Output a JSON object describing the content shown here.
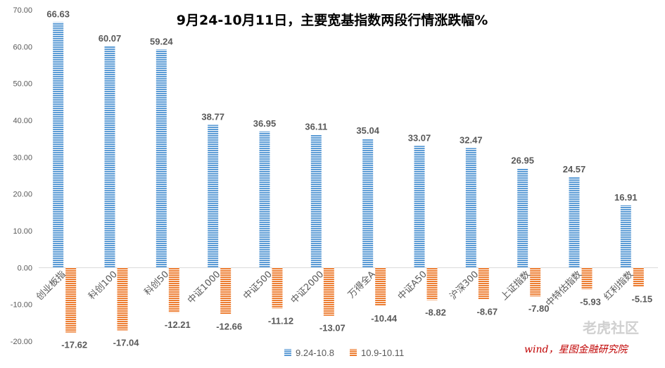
{
  "chart_data": {
    "type": "bar",
    "title": "9月24-10月11日，主要宽基指数两段行情涨跌幅%",
    "categories": [
      "创业板指",
      "科创100",
      "科创50",
      "中证1000",
      "中证500",
      "中证2000",
      "万得全A",
      "中证A50",
      "沪深300",
      "上证指数",
      "中特估指数",
      "红利指数"
    ],
    "series": [
      {
        "name": "9.24-10.8",
        "color": "#5b9bd5",
        "values": [
          66.63,
          60.07,
          59.24,
          38.77,
          36.95,
          36.11,
          35.04,
          33.07,
          32.47,
          26.95,
          24.57,
          16.91
        ]
      },
      {
        "name": "10.9-10.11",
        "color": "#ed7d31",
        "values": [
          -17.62,
          -17.04,
          -12.21,
          -12.66,
          -11.12,
          -13.07,
          -10.44,
          -8.82,
          -8.67,
          -7.8,
          -5.93,
          -5.15
        ]
      }
    ],
    "y_tick_labels": [
      "70.00",
      "60.00",
      "50.00",
      "40.00",
      "30.00",
      "20.00",
      "10.00",
      "0.00",
      "-10.00",
      "-20.00"
    ],
    "ylim": [
      -20,
      70
    ],
    "bar_fill": "horizontal-stripes",
    "grid": false,
    "legend_position": "bottom",
    "source_note": "wind，星图金融研究院",
    "watermark": "老虎社区"
  }
}
